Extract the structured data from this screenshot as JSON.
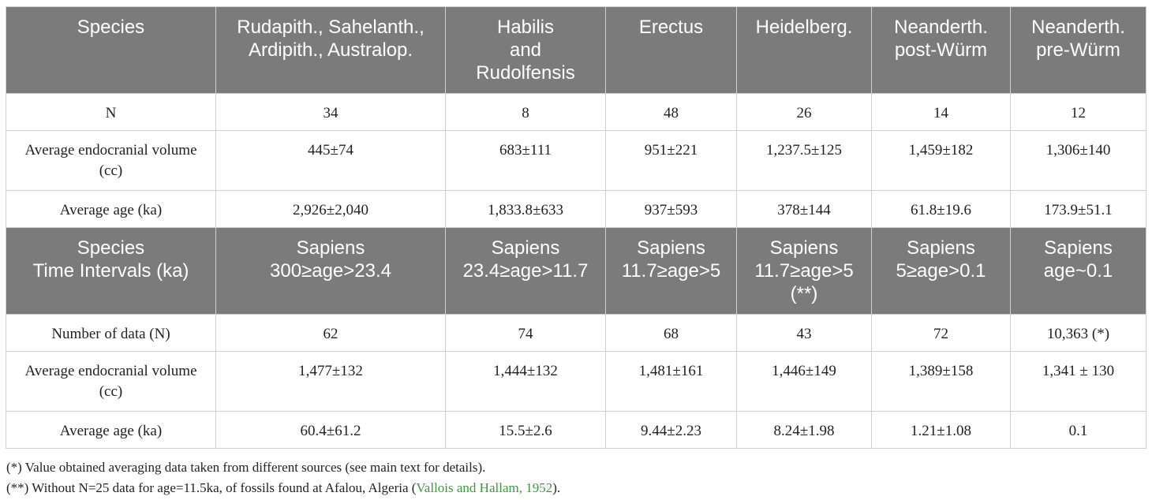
{
  "table1": {
    "headers": [
      "Species",
      "Rudapith., Sahelanth.,\nArdipith., Australop.",
      "Habilis\nand\nRudolfensis",
      "Erectus",
      "Heidelberg.",
      "Neanderth.\npost-Würm",
      "Neanderth.\npre-Würm"
    ],
    "rows": [
      [
        "N",
        "34",
        "8",
        "48",
        "26",
        "14",
        "12"
      ],
      [
        "Average endocranial volume (cc)",
        "445±74",
        "683±111",
        "951±221",
        "1,237.5±125",
        "1,459±182",
        "1,306±140"
      ],
      [
        "Average age (ka)",
        "2,926±2,040",
        "1,833.8±633",
        "937±593",
        "378±144",
        "61.8±19.6",
        "173.9±51.1"
      ]
    ]
  },
  "table2": {
    "headers": [
      "Species\nTime Intervals (ka)",
      "Sapiens\n300≥age>23.4",
      "Sapiens\n23.4≥age>11.7",
      "Sapiens\n11.7≥age>5",
      "Sapiens\n11.7≥age>5\n(**)",
      "Sapiens\n5≥age>0.1",
      "Sapiens\nage~0.1"
    ],
    "rows": [
      [
        "Number of data (N)",
        "62",
        "74",
        "68",
        "43",
        "72",
        "10,363 (*)"
      ],
      [
        "Average endocranial volume (cc)",
        "1,477±132",
        "1,444±132",
        "1,481±161",
        "1,446±149",
        "1,389±158",
        "1,341 ± 130"
      ],
      [
        "Average age (ka)",
        "60.4±61.2",
        "15.5±2.6",
        "9.44±2.23",
        "8.24±1.98",
        "1.21±1.08",
        "0.1"
      ]
    ]
  },
  "footnotes": {
    "note1": "(*) Value obtained averaging data taken from different sources (see main text for details).",
    "note2_prefix": "(**) Without N=25 data for age=11.5ka, of fossils found at Afalou, Algeria (",
    "note2_citation": "Vallois and Hallam, 1952",
    "note2_suffix": ")."
  },
  "colors": {
    "header_bg": "#7b7b7b",
    "header_text": "#ffffff",
    "border": "#cfcfcf",
    "citation": "#3a9a3a"
  }
}
